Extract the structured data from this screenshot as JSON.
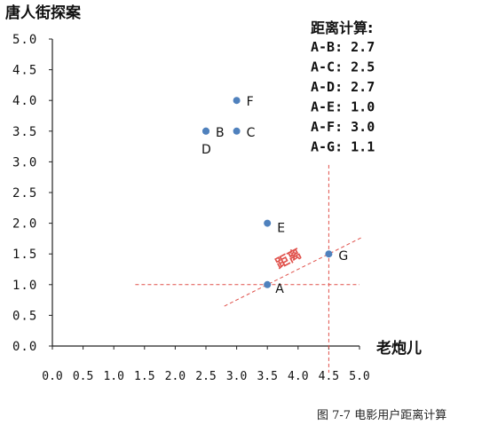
{
  "chart_data": {
    "type": "scatter",
    "ylabel": "唐人街探案",
    "xlabel": "老炮儿",
    "xlim": [
      0,
      5.0
    ],
    "ylim": [
      0,
      5.0
    ],
    "x_ticks": [
      "0.0",
      "0.5",
      "1.0",
      "1.5",
      "2.0",
      "2.5",
      "3.0",
      "3.5",
      "4.0",
      "4.5",
      "5.0"
    ],
    "y_ticks": [
      "0.0",
      "0.5",
      "1.0",
      "1.5",
      "2.0",
      "2.5",
      "3.0",
      "3.5",
      "4.0",
      "4.5",
      "5.0"
    ],
    "points": [
      {
        "label": "A",
        "x": 3.5,
        "y": 1.0
      },
      {
        "label": "B",
        "x": 2.5,
        "y": 3.5
      },
      {
        "label": "C",
        "x": 3.0,
        "y": 3.5
      },
      {
        "label": "D",
        "x": 2.5,
        "y": 3.5
      },
      {
        "label": "E",
        "x": 3.5,
        "y": 2.0
      },
      {
        "label": "F",
        "x": 3.0,
        "y": 4.0
      },
      {
        "label": "G",
        "x": 4.5,
        "y": 1.5
      }
    ],
    "reference_lines": {
      "horizontal_y": 1.0,
      "vertical_x": 4.5,
      "distance_label": "距离"
    },
    "distance_box": {
      "title": "距离计算:",
      "rows": [
        "A-B: 2.7",
        "A-C: 2.5",
        "A-D: 2.7",
        "A-E: 1.0",
        "A-F: 3.0",
        "A-G: 1.1"
      ]
    },
    "point_color": "#4f81bd",
    "guide_color": "#e0504a",
    "grid": false
  },
  "caption": "图 7-7  电影用户距离计算"
}
